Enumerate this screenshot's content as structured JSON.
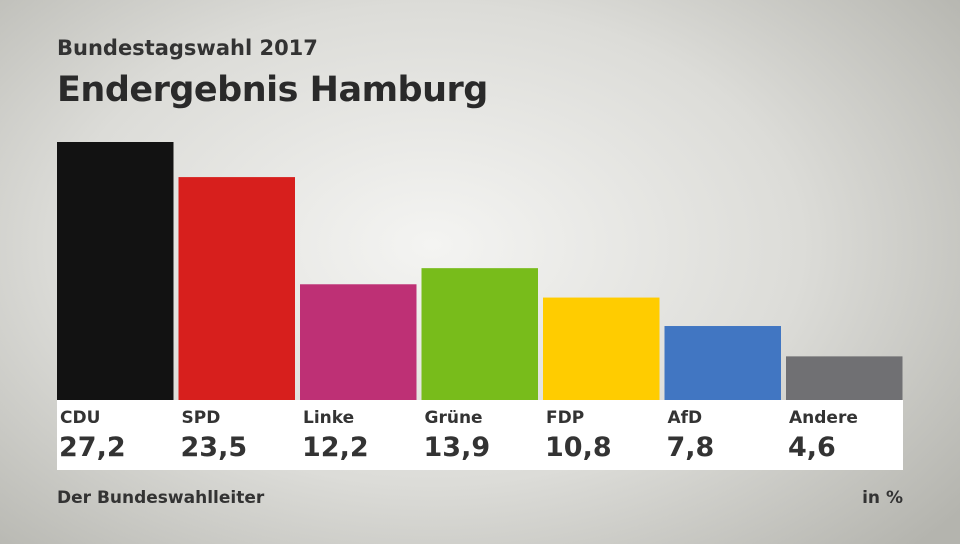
{
  "chart_data": {
    "type": "bar",
    "subtitle": "Bundestagswahl 2017",
    "title": "Endergebnis Hamburg",
    "categories": [
      "CDU",
      "SPD",
      "Linke",
      "Grüne",
      "FDP",
      "AfD",
      "Andere"
    ],
    "values": [
      27.2,
      23.5,
      12.2,
      13.9,
      10.8,
      7.8,
      4.6
    ],
    "value_labels": [
      "27,2",
      "23,5",
      "12,2",
      "13,9",
      "10,8",
      "7,8",
      "4,6"
    ],
    "colors": [
      "#121212",
      "#d71f1d",
      "#be3075",
      "#78bc1b",
      "#ffcc00",
      "#4176c2",
      "#707073"
    ],
    "unit": "in %",
    "source": "Der Bundeswahlleiter",
    "ylim": [
      0,
      27.2
    ],
    "grid": false
  }
}
